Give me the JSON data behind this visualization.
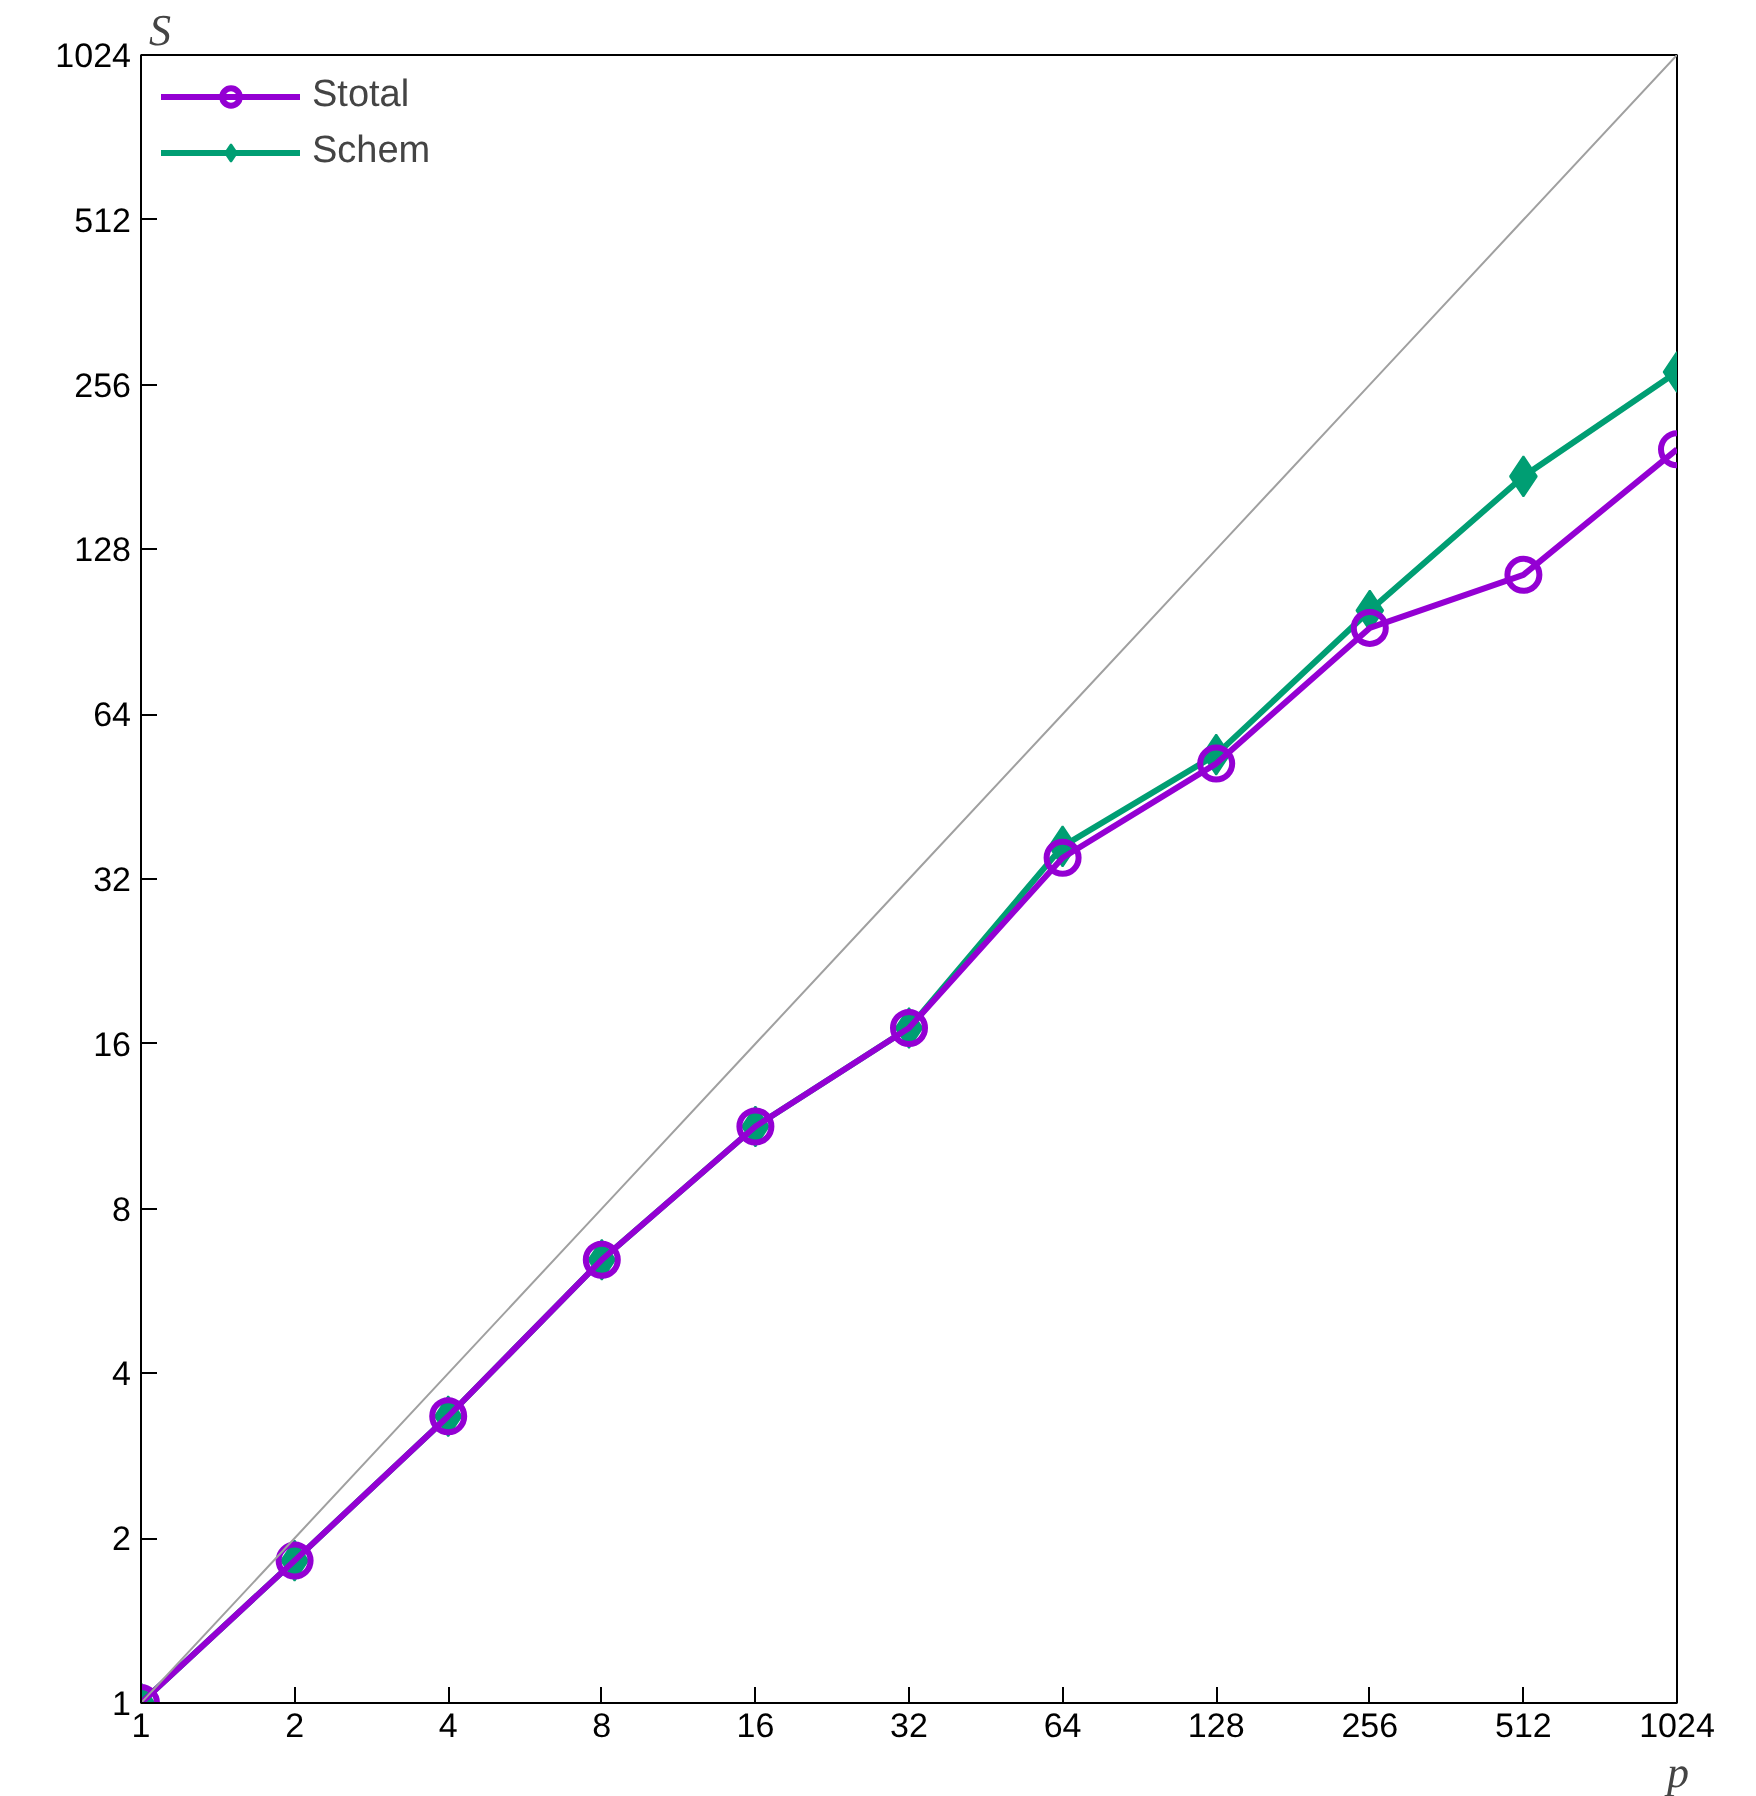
{
  "chart_data": {
    "type": "line",
    "xlabel": "p",
    "ylabel": "S",
    "log": "xy",
    "grid": false,
    "legend": "top left",
    "x": [
      1,
      2,
      4,
      8,
      16,
      32,
      64,
      128,
      256,
      512,
      1024
    ],
    "xlim": [
      1,
      1024
    ],
    "ylim": [
      1,
      1024
    ],
    "xticks": [
      1,
      2,
      4,
      8,
      16,
      32,
      64,
      128,
      256,
      512,
      1024
    ],
    "yticks": [
      1,
      2,
      4,
      8,
      16,
      32,
      64,
      128,
      256,
      512,
      1024
    ],
    "series": [
      {
        "color": "#a0a0a0",
        "marker": "none",
        "values": [
          1,
          2,
          4,
          8,
          16,
          32,
          64,
          128,
          256,
          512,
          1024
        ]
      },
      {
        "name": "Stotal",
        "color": "#9400d3",
        "marker": "circle",
        "values": [
          1,
          1.82,
          3.34,
          6.45,
          11.3,
          17.1,
          35,
          52,
          92,
          115,
          195
        ]
      },
      {
        "name": "Schem",
        "color": "#009e73",
        "marker": "diamond",
        "values": [
          1,
          1.82,
          3.34,
          6.45,
          11.3,
          17.1,
          36.7,
          54,
          99,
          174,
          270
        ]
      }
    ]
  }
}
